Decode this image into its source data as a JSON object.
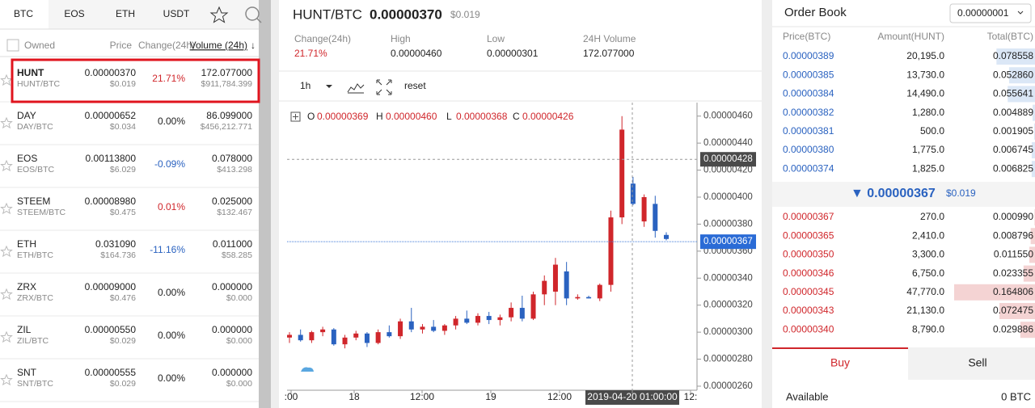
{
  "tabs": [
    "BTC",
    "EOS",
    "ETH",
    "USDT"
  ],
  "market_header": {
    "owned": "Owned",
    "price": "Price",
    "change": "Change(24h)",
    "volume": "Volume (24h)"
  },
  "markets": [
    {
      "symbol": "HUNT",
      "pair": "HUNT/BTC",
      "price": "0.00000370",
      "price_usd": "$0.019",
      "change": "21.71%",
      "volume": "172.077000",
      "volume_usd": "$911,784.399"
    },
    {
      "symbol": "DAY",
      "pair": "DAY/BTC",
      "price": "0.00000652",
      "price_usd": "$0.034",
      "change": "0.00%",
      "volume": "86.099000",
      "volume_usd": "$456,212.771"
    },
    {
      "symbol": "EOS",
      "pair": "EOS/BTC",
      "price": "0.00113800",
      "price_usd": "$6.029",
      "change": "-0.09%",
      "volume": "0.078000",
      "volume_usd": "$413.298"
    },
    {
      "symbol": "STEEM",
      "pair": "STEEM/BTC",
      "price": "0.00008980",
      "price_usd": "$0.475",
      "change": "0.01%",
      "volume": "0.025000",
      "volume_usd": "$132.467"
    },
    {
      "symbol": "ETH",
      "pair": "ETH/BTC",
      "price": "0.031090",
      "price_usd": "$164.736",
      "change": "-11.16%",
      "volume": "0.011000",
      "volume_usd": "$58.285"
    },
    {
      "symbol": "ZRX",
      "pair": "ZRX/BTC",
      "price": "0.00009000",
      "price_usd": "$0.476",
      "change": "0.00%",
      "volume": "0.000000",
      "volume_usd": "$0.000"
    },
    {
      "symbol": "ZIL",
      "pair": "ZIL/BTC",
      "price": "0.00000550",
      "price_usd": "$0.029",
      "change": "0.00%",
      "volume": "0.000000",
      "volume_usd": "$0.000"
    },
    {
      "symbol": "SNT",
      "pair": "SNT/BTC",
      "price": "0.00000555",
      "price_usd": "$0.029",
      "change": "0.00%",
      "volume": "0.000000",
      "volume_usd": "$0.000"
    }
  ],
  "ticker": {
    "pair": "HUNT/BTC",
    "price": "0.00000370",
    "price_usd": "$0.019",
    "stats": [
      {
        "label": "Change(24h)",
        "value": "21.71%"
      },
      {
        "label": "High",
        "value": "0.00000460"
      },
      {
        "label": "Low",
        "value": "0.00000301"
      },
      {
        "label": "24H Volume",
        "value": "172.077000"
      }
    ]
  },
  "toolbar": {
    "interval": "1h",
    "reset": "reset"
  },
  "chart": {
    "type": "candlestick",
    "ohlc": [
      {
        "label": "O",
        "value": "0.00000369"
      },
      {
        "label": "H",
        "value": "0.00000460"
      },
      {
        "label": "L",
        "value": "0.00000368"
      },
      {
        "label": "C",
        "value": "0.00000426"
      }
    ],
    "ylim": [
      2.57e-06,
      4.7e-06
    ],
    "yticks": [
      {
        "value": 2.6e-06,
        "label": "0.00000260"
      },
      {
        "value": 2.8e-06,
        "label": "0.00000280"
      },
      {
        "value": 3e-06,
        "label": "0.00000300"
      },
      {
        "value": 3.2e-06,
        "label": "0.00000320"
      },
      {
        "value": 3.4e-06,
        "label": "0.00000340"
      },
      {
        "value": 3.6e-06,
        "label": "0.00000360"
      },
      {
        "value": 3.8e-06,
        "label": "0.00000380"
      },
      {
        "value": 4e-06,
        "label": "0.00000400"
      },
      {
        "value": 4.2e-06,
        "label": "0.00000420"
      },
      {
        "value": 4.4e-06,
        "label": "0.00000440"
      },
      {
        "value": 4.6e-06,
        "label": "0.00000460"
      }
    ],
    "xticks": [
      ":00",
      "18",
      "12:00",
      "19",
      "12:00",
      "2019-04-20 01:00:00",
      "12:"
    ],
    "crosshair": {
      "value": 4.28e-06,
      "label": "0.00000428"
    },
    "last_price": {
      "value": 3.67e-06,
      "label": "0.00000367"
    },
    "up_color": "#d0262b",
    "down_color": "#2a62c0",
    "open": [
      2.96e-06,
      2.98e-06,
      2.94e-06,
      3e-06,
      3.02e-06,
      2.91e-06,
      2.96e-06,
      2.99e-06,
      2.92e-06,
      3e-06,
      2.97e-06,
      3.08e-06,
      3.02e-06,
      3.04e-06,
      3.01e-06,
      3.05e-06,
      3.1e-06,
      3.07e-06,
      3.12e-06,
      3.09e-06,
      3.11e-06,
      3.18e-06,
      3.1e-06,
      3.28e-06,
      3.3e-06,
      3.45e-06,
      3.25e-06,
      3.26e-06,
      3.25e-06,
      3.35e-06,
      3.85e-06,
      4.1e-06,
      3.82e-06,
      3.95e-06,
      3.72e-06
    ],
    "high": [
      3e-06,
      3.02e-06,
      3.01e-06,
      3.04e-06,
      3.03e-06,
      2.98e-06,
      3.01e-06,
      3e-06,
      3.02e-06,
      3.05e-06,
      3.1e-06,
      3.18e-06,
      3.06e-06,
      3.09e-06,
      3.06e-06,
      3.12e-06,
      3.16e-06,
      3.14e-06,
      3.15e-06,
      3.13e-06,
      3.22e-06,
      3.27e-06,
      3.3e-06,
      3.42e-06,
      3.55e-06,
      3.52e-06,
      3.28e-06,
      3.27e-06,
      3.36e-06,
      3.9e-06,
      4.6e-06,
      4.15e-06,
      4.02e-06,
      4.01e-06,
      3.74e-06
    ],
    "low": [
      2.92e-06,
      2.93e-06,
      2.92e-06,
      2.97e-06,
      2.9e-06,
      2.88e-06,
      2.94e-06,
      2.89e-06,
      2.91e-06,
      2.96e-06,
      2.95e-06,
      3e-06,
      2.99e-06,
      3e-06,
      2.98e-06,
      3.02e-06,
      3.06e-06,
      3.05e-06,
      3.06e-06,
      3.05e-06,
      3.08e-06,
      3.08e-06,
      3.09e-06,
      3.2e-06,
      3.2e-06,
      3.2e-06,
      3.24e-06,
      3.25e-06,
      3.23e-06,
      3.3e-06,
      3.8e-06,
      3.94e-06,
      3.78e-06,
      3.7e-06,
      3.68e-06
    ],
    "close": [
      2.98e-06,
      2.94e-06,
      3e-06,
      3.02e-06,
      2.91e-06,
      2.96e-06,
      2.99e-06,
      2.92e-06,
      3e-06,
      2.97e-06,
      3.08e-06,
      3.02e-06,
      3.04e-06,
      3.01e-06,
      3.05e-06,
      3.1e-06,
      3.07e-06,
      3.12e-06,
      3.09e-06,
      3.11e-06,
      3.18e-06,
      3.1e-06,
      3.28e-06,
      3.38e-06,
      3.5e-06,
      3.25e-06,
      3.26e-06,
      3.25e-06,
      3.35e-06,
      3.85e-06,
      4.5e-06,
      3.95e-06,
      4e-06,
      3.75e-06,
      3.69e-06
    ]
  },
  "order_book": {
    "title": "Order Book",
    "precision": "0.00000001",
    "headers": [
      "Price(BTC)",
      "Amount(HUNT)",
      "Total(BTC)"
    ],
    "asks": [
      {
        "price": "0.00000389",
        "amount": "20,195.0",
        "total": "0.078558"
      },
      {
        "price": "0.00000385",
        "amount": "13,730.0",
        "total": "0.052860"
      },
      {
        "price": "0.00000384",
        "amount": "14,490.0",
        "total": "0.055641"
      },
      {
        "price": "0.00000382",
        "amount": "1,280.0",
        "total": "0.004889"
      },
      {
        "price": "0.00000381",
        "amount": "500.0",
        "total": "0.001905"
      },
      {
        "price": "0.00000380",
        "amount": "1,775.0",
        "total": "0.006745"
      },
      {
        "price": "0.00000374",
        "amount": "1,825.0",
        "total": "0.006825"
      }
    ],
    "last": "▼ 0.00000367",
    "last_usd": "$0.019",
    "bids": [
      {
        "price": "0.00000367",
        "amount": "270.0",
        "total": "0.000990"
      },
      {
        "price": "0.00000365",
        "amount": "2,410.0",
        "total": "0.008796"
      },
      {
        "price": "0.00000350",
        "amount": "3,300.0",
        "total": "0.011550"
      },
      {
        "price": "0.00000346",
        "amount": "6,750.0",
        "total": "0.023355"
      },
      {
        "price": "0.00000345",
        "amount": "47,770.0",
        "total": "0.164806"
      },
      {
        "price": "0.00000343",
        "amount": "21,130.0",
        "total": "0.072475"
      },
      {
        "price": "0.00000340",
        "amount": "8,790.0",
        "total": "0.029886"
      }
    ]
  },
  "trade": {
    "buy": "Buy",
    "sell": "Sell",
    "available": "Available",
    "balance": "0 BTC"
  }
}
